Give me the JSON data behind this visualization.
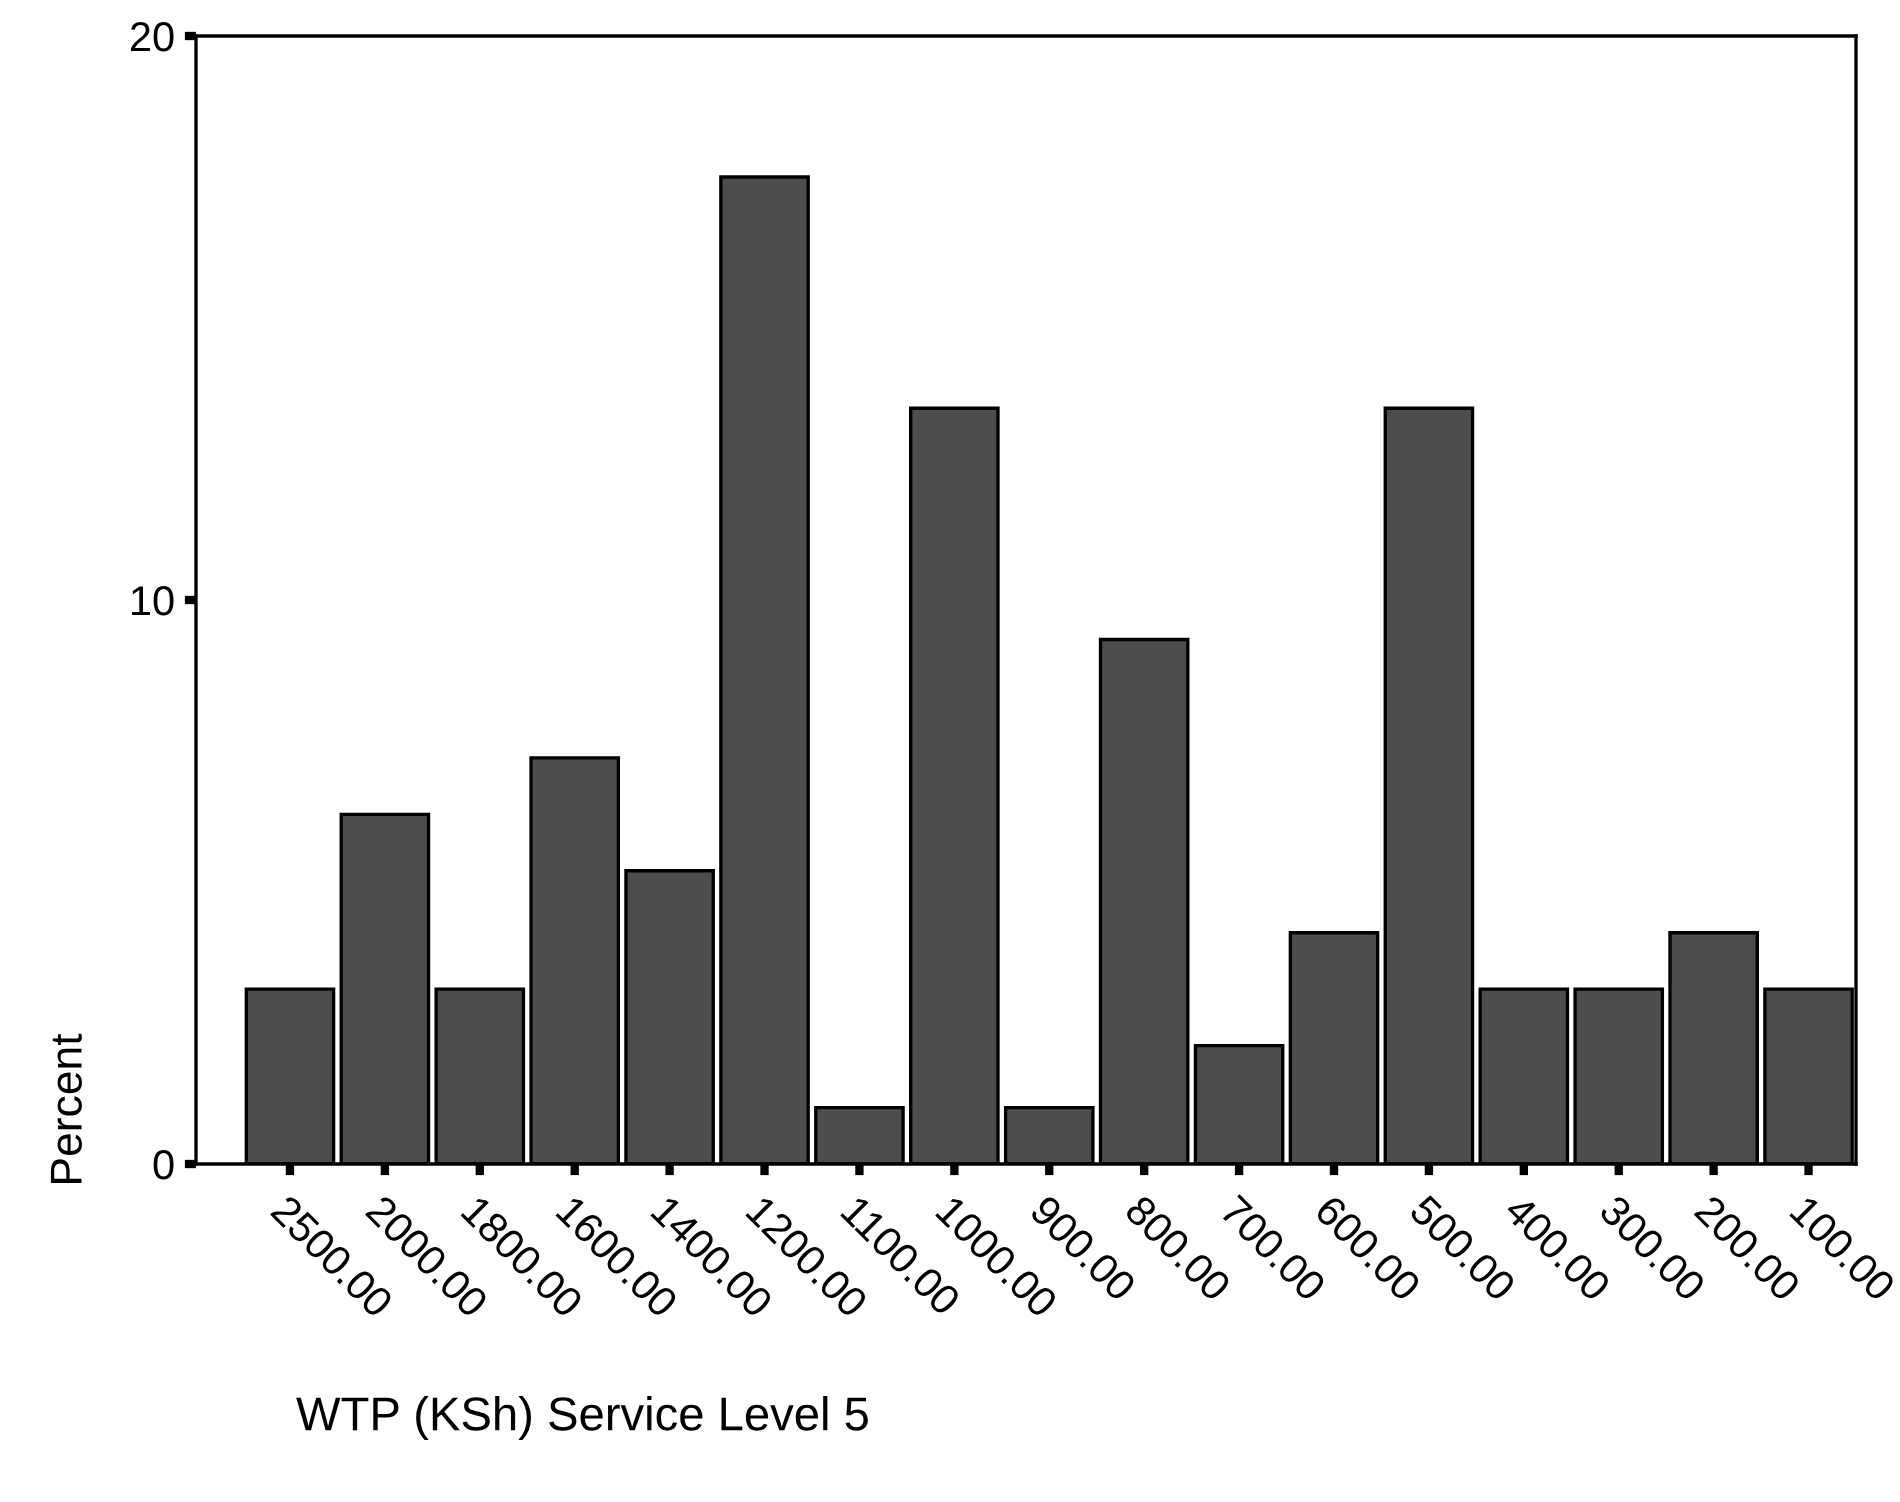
{
  "chart_data": {
    "type": "bar",
    "xlabel": "WTP (KSh) Service Level 5",
    "ylabel": "Percent",
    "categories": [
      "2500.00",
      "2000.00",
      "1800.00",
      "1600.00",
      "1400.00",
      "1200.00",
      "1100.00",
      "1000.00",
      "900.00",
      "800.00",
      "700.00",
      "600.00",
      "500.00",
      "400.00",
      "300.00",
      "200.00",
      "100.00"
    ],
    "values": [
      3.1,
      6.2,
      3.1,
      7.2,
      5.2,
      17.5,
      1.0,
      13.4,
      1.0,
      9.3,
      2.1,
      4.1,
      13.4,
      3.1,
      3.1,
      4.1,
      3.1
    ],
    "color": "#4d4d4d",
    "ylim": [
      0,
      20
    ],
    "yticks": [
      0,
      10,
      20
    ],
    "grid": false,
    "legend": false
  }
}
